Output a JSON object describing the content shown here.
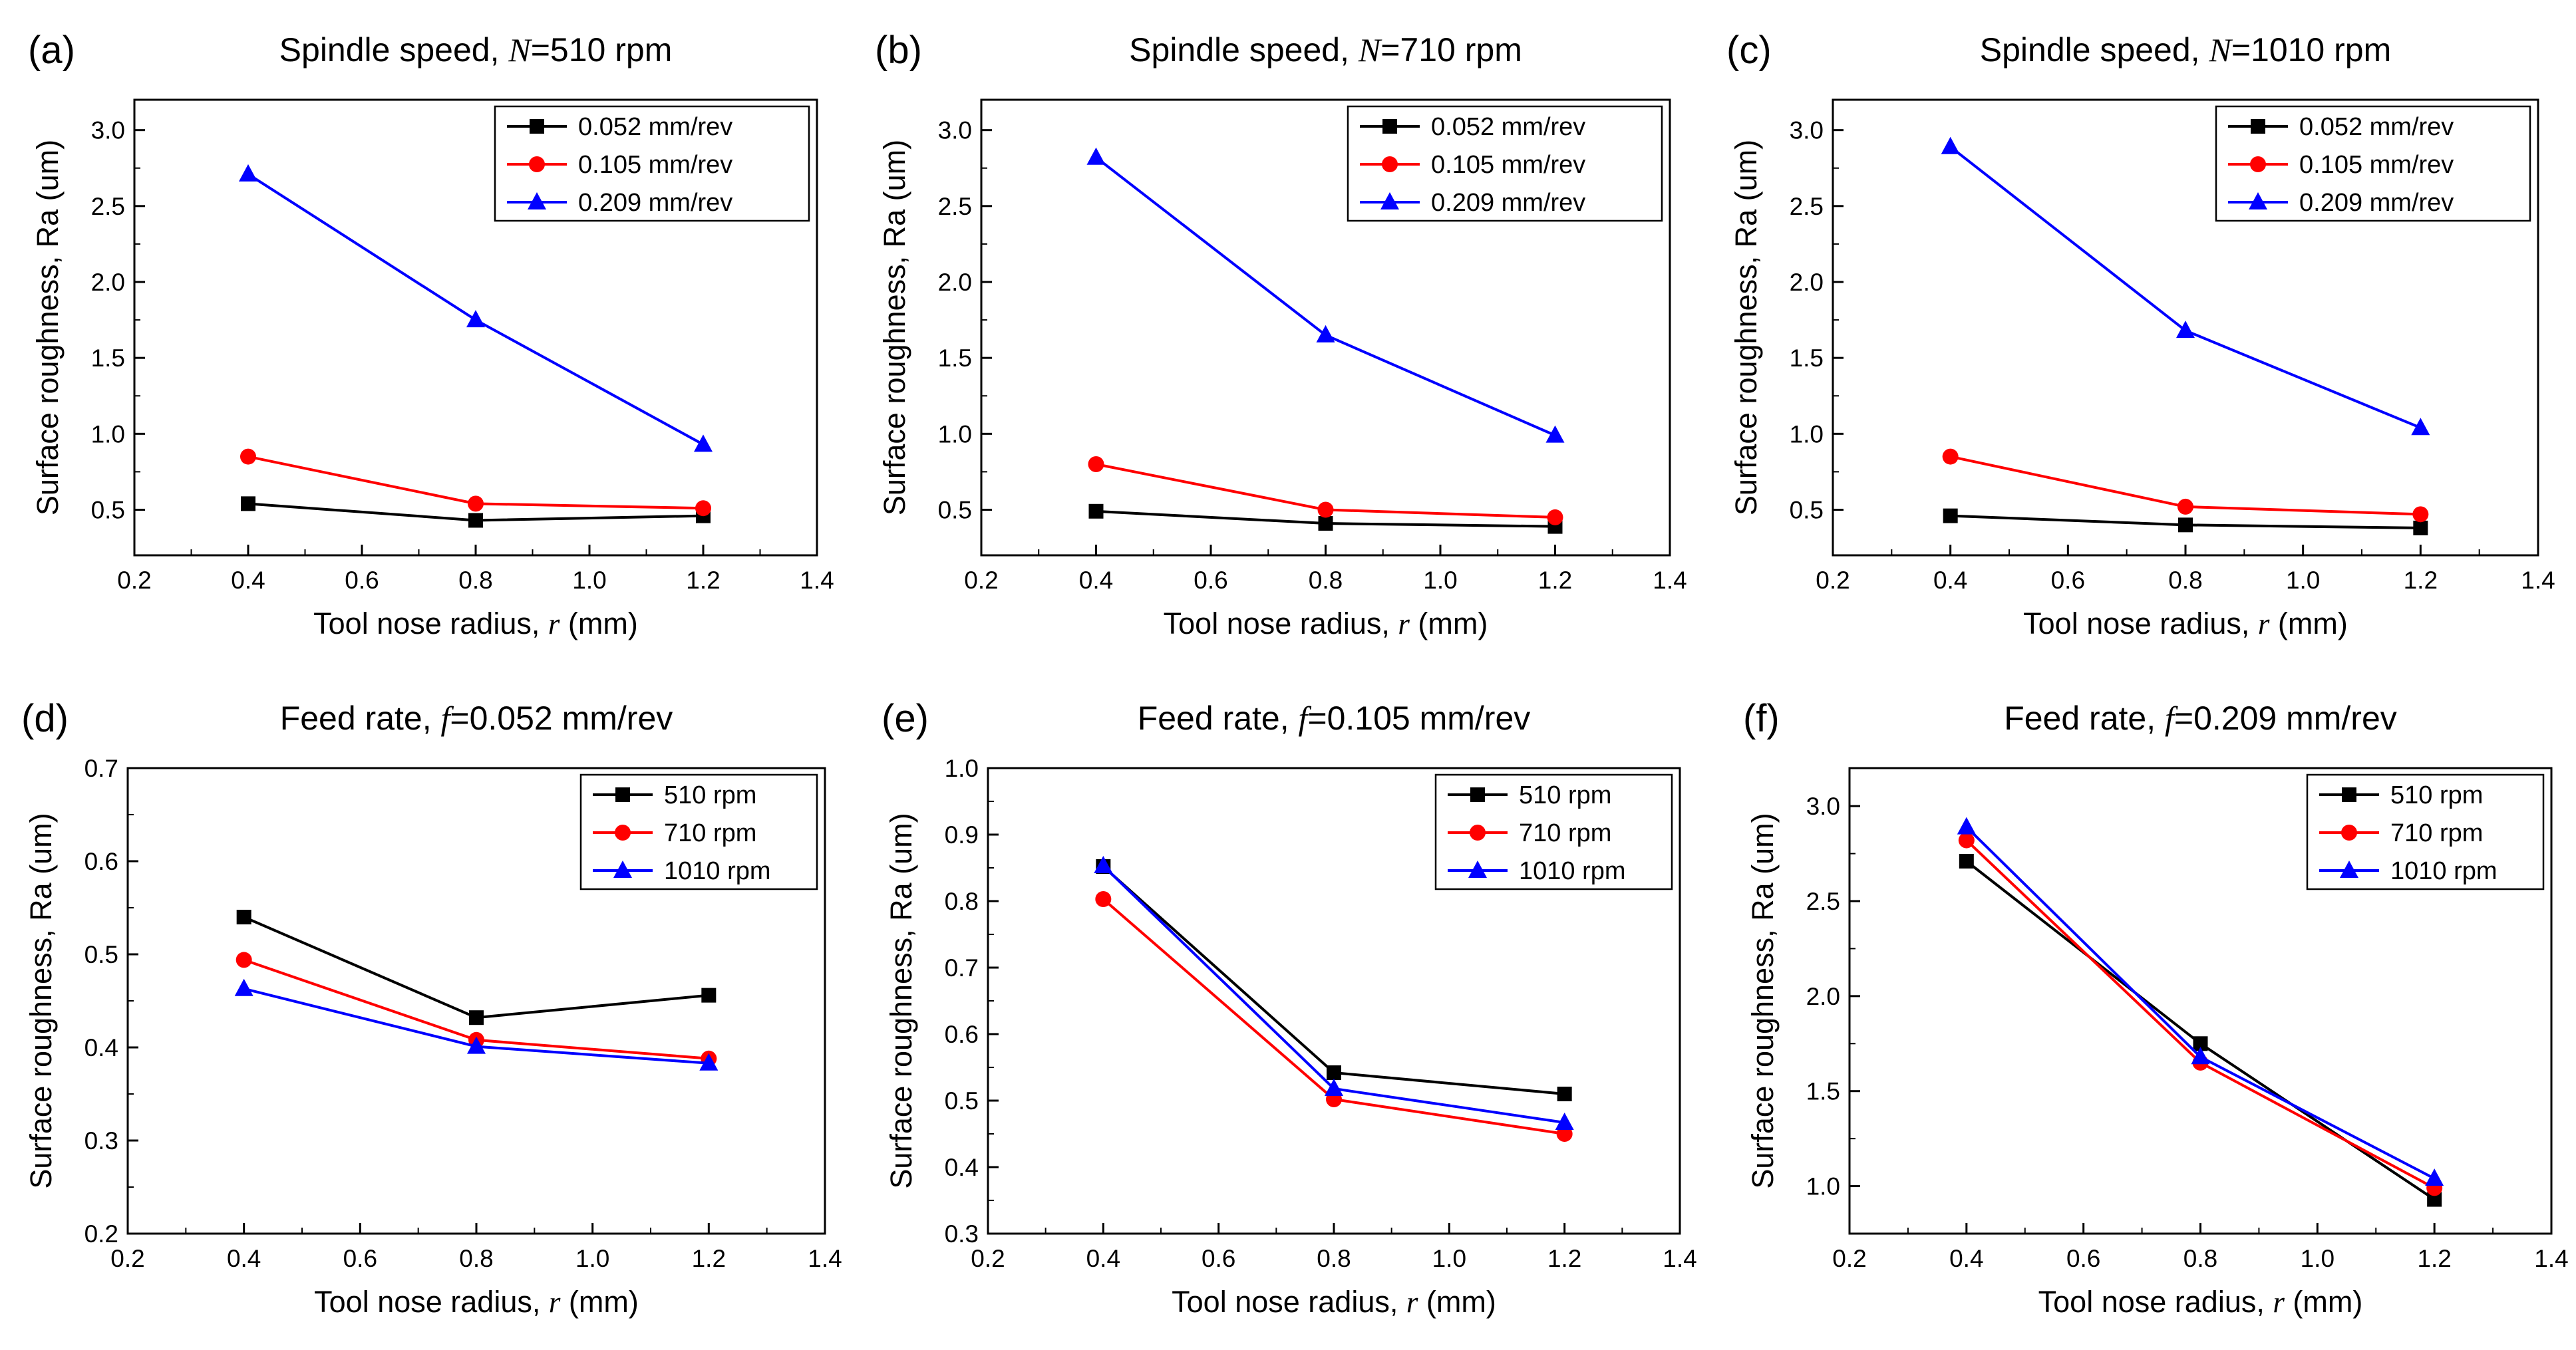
{
  "figure": {
    "xlabel_prefix": "Tool nose radius, ",
    "xlabel_var": "r",
    "xlabel_suffix": " (mm)",
    "ylabel": "Surface roughness, Ra (um)"
  },
  "colors": {
    "s0": "#000000",
    "s1": "#ff0000",
    "s2": "#0000ff"
  },
  "chart_data": [
    {
      "id": "a",
      "panel_label": "(a)",
      "type": "line",
      "title_prefix": "Spindle speed, ",
      "title_var": "N",
      "title_suffix": "=510 rpm",
      "x": [
        0.4,
        0.8,
        1.2
      ],
      "xlim": [
        0.2,
        1.4
      ],
      "xticks": [
        "0.2",
        "0.4",
        "0.6",
        "0.8",
        "1.0",
        "1.2",
        "1.4"
      ],
      "ylim": [
        0.2,
        3.2
      ],
      "yticks": [
        "0.5",
        "1.0",
        "1.5",
        "2.0",
        "2.5",
        "3.0"
      ],
      "series": [
        {
          "name": "0.052 mm/rev",
          "marker": "square",
          "values": [
            0.54,
            0.43,
            0.46
          ]
        },
        {
          "name": "0.105 mm/rev",
          "marker": "circle",
          "values": [
            0.85,
            0.54,
            0.51
          ]
        },
        {
          "name": "0.209 mm/rev",
          "marker": "triangle",
          "values": [
            2.71,
            1.75,
            0.93
          ]
        }
      ]
    },
    {
      "id": "b",
      "panel_label": "(b)",
      "type": "line",
      "title_prefix": "Spindle speed, ",
      "title_var": "N",
      "title_suffix": "=710 rpm",
      "x": [
        0.4,
        0.8,
        1.2
      ],
      "xlim": [
        0.2,
        1.4
      ],
      "xticks": [
        "0.2",
        "0.4",
        "0.6",
        "0.8",
        "1.0",
        "1.2",
        "1.4"
      ],
      "ylim": [
        0.2,
        3.2
      ],
      "yticks": [
        "0.5",
        "1.0",
        "1.5",
        "2.0",
        "2.5",
        "3.0"
      ],
      "series": [
        {
          "name": "0.052 mm/rev",
          "marker": "square",
          "values": [
            0.49,
            0.41,
            0.39
          ]
        },
        {
          "name": "0.105 mm/rev",
          "marker": "circle",
          "values": [
            0.8,
            0.5,
            0.45
          ]
        },
        {
          "name": "0.209 mm/rev",
          "marker": "triangle",
          "values": [
            2.82,
            1.65,
            0.99
          ]
        }
      ]
    },
    {
      "id": "c",
      "panel_label": "(c)",
      "type": "line",
      "title_prefix": "Spindle speed, ",
      "title_var": "N",
      "title_suffix": "=1010 rpm",
      "x": [
        0.4,
        0.8,
        1.2
      ],
      "xlim": [
        0.2,
        1.4
      ],
      "xticks": [
        "0.2",
        "0.4",
        "0.6",
        "0.8",
        "1.0",
        "1.2",
        "1.4"
      ],
      "ylim": [
        0.2,
        3.2
      ],
      "yticks": [
        "0.5",
        "1.0",
        "1.5",
        "2.0",
        "2.5",
        "3.0"
      ],
      "series": [
        {
          "name": "0.052 mm/rev",
          "marker": "square",
          "values": [
            0.46,
            0.4,
            0.38
          ]
        },
        {
          "name": "0.105 mm/rev",
          "marker": "circle",
          "values": [
            0.85,
            0.52,
            0.47
          ]
        },
        {
          "name": "0.209 mm/rev",
          "marker": "triangle",
          "values": [
            2.89,
            1.68,
            1.04
          ]
        }
      ]
    },
    {
      "id": "d",
      "panel_label": "(d)",
      "type": "line",
      "title_prefix": "Feed rate, ",
      "title_var": "f",
      "title_suffix": "=0.052 mm/rev",
      "x": [
        0.4,
        0.8,
        1.2
      ],
      "xlim": [
        0.2,
        1.4
      ],
      "xticks": [
        "0.2",
        "0.4",
        "0.6",
        "0.8",
        "1.0",
        "1.2",
        "1.4"
      ],
      "ylim": [
        0.2,
        0.7
      ],
      "yticks": [
        "0.2",
        "0.3",
        "0.4",
        "0.5",
        "0.6",
        "0.7"
      ],
      "series": [
        {
          "name": "510 rpm",
          "marker": "square",
          "values": [
            0.54,
            0.432,
            0.456
          ]
        },
        {
          "name": "710 rpm",
          "marker": "circle",
          "values": [
            0.494,
            0.408,
            0.388
          ]
        },
        {
          "name": "1010 rpm",
          "marker": "triangle",
          "values": [
            0.463,
            0.401,
            0.383
          ]
        }
      ]
    },
    {
      "id": "e",
      "panel_label": "(e)",
      "type": "line",
      "title_prefix": "Feed rate, ",
      "title_var": "f",
      "title_suffix": "=0.105 mm/rev",
      "x": [
        0.4,
        0.8,
        1.2
      ],
      "xlim": [
        0.2,
        1.4
      ],
      "xticks": [
        "0.2",
        "0.4",
        "0.6",
        "0.8",
        "1.0",
        "1.2",
        "1.4"
      ],
      "ylim": [
        0.3,
        1.0
      ],
      "yticks": [
        "0.3",
        "0.4",
        "0.5",
        "0.6",
        "0.7",
        "0.8",
        "0.9",
        "1.0"
      ],
      "series": [
        {
          "name": "510 rpm",
          "marker": "square",
          "values": [
            0.852,
            0.542,
            0.51
          ]
        },
        {
          "name": "710 rpm",
          "marker": "circle",
          "values": [
            0.803,
            0.502,
            0.45
          ]
        },
        {
          "name": "1010 rpm",
          "marker": "triangle",
          "values": [
            0.853,
            0.518,
            0.467
          ]
        }
      ]
    },
    {
      "id": "f",
      "panel_label": "(f)",
      "type": "line",
      "title_prefix": "Feed rate, ",
      "title_var": "f",
      "title_suffix": "=0.209 mm/rev",
      "x": [
        0.4,
        0.8,
        1.2
      ],
      "xlim": [
        0.2,
        1.4
      ],
      "xticks": [
        "0.2",
        "0.4",
        "0.6",
        "0.8",
        "1.0",
        "1.2",
        "1.4"
      ],
      "ylim": [
        0.75,
        3.2
      ],
      "yticks": [
        "1.0",
        "1.5",
        "2.0",
        "2.5",
        "3.0"
      ],
      "series": [
        {
          "name": "510 rpm",
          "marker": "square",
          "values": [
            2.71,
            1.75,
            0.93
          ]
        },
        {
          "name": "710 rpm",
          "marker": "circle",
          "values": [
            2.82,
            1.65,
            0.99
          ]
        },
        {
          "name": "1010 rpm",
          "marker": "triangle",
          "values": [
            2.89,
            1.68,
            1.04
          ]
        }
      ]
    }
  ]
}
